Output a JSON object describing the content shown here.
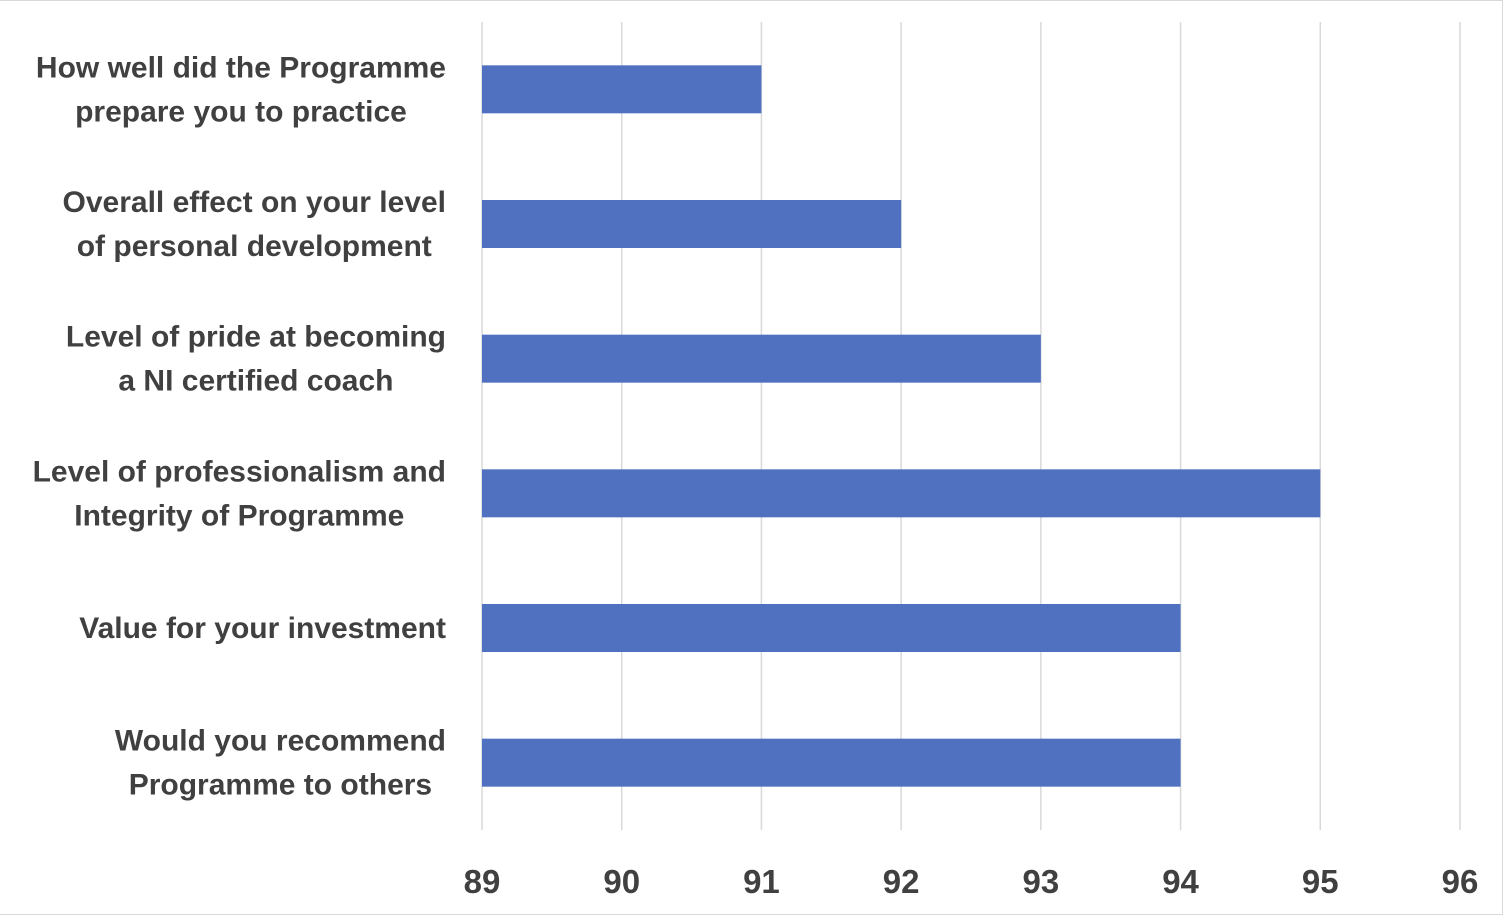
{
  "chart_data": {
    "type": "bar",
    "orientation": "horizontal",
    "title": "",
    "xlabel": "",
    "ylabel": "",
    "categories": [
      [
        "How well did the Programme",
        "prepare you to practice"
      ],
      [
        "Overall effect on your level",
        "of personal development"
      ],
      [
        "Level of pride at becoming",
        "a NI certified coach"
      ],
      [
        "Level of professionalism and",
        "Integrity of Programme"
      ],
      [
        "Value for your investment"
      ],
      [
        "Would you recommend",
        "Programme to others"
      ]
    ],
    "values": [
      91,
      92,
      93,
      95,
      94,
      94
    ],
    "xlim": [
      89,
      96
    ],
    "xticks": [
      "89",
      "90",
      "91",
      "92",
      "93",
      "94",
      "95",
      "96"
    ],
    "grid": "vertical",
    "legend": "none",
    "bar_color": "#4f71bf",
    "grid_color": "#d9d9d9",
    "text_color": "#404040"
  }
}
